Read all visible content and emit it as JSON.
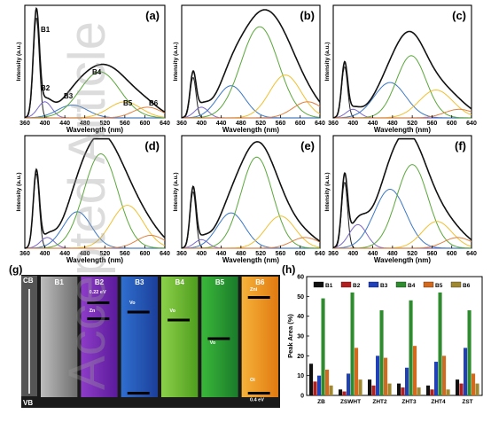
{
  "figure": {
    "watermark": "Accepted Article"
  },
  "pl_axes": {
    "xlabel": "Wavelength (nm)",
    "ylabel": "Intensity (a.u.)",
    "x_min": 360,
    "x_max": 640,
    "xticks": [
      360,
      400,
      440,
      480,
      520,
      560,
      600,
      640
    ]
  },
  "pl_panels": [
    {
      "label": "(a)",
      "peak_labels": [
        "B1",
        "B2",
        "B3",
        "B4",
        "B5",
        "B6"
      ],
      "bands": [
        {
          "center": 383,
          "width": 6,
          "height": 0.94
        },
        {
          "center": 400,
          "width": 14,
          "height": 0.15
        },
        {
          "center": 455,
          "width": 30,
          "height": 0.12
        },
        {
          "center": 510,
          "width": 40,
          "height": 0.43
        },
        {
          "center": 560,
          "width": 32,
          "height": 0.15
        },
        {
          "center": 605,
          "width": 28,
          "height": 0.1
        }
      ]
    },
    {
      "label": "(b)",
      "peak_labels": [],
      "bands": [
        {
          "center": 383,
          "width": 6,
          "height": 0.38
        },
        {
          "center": 400,
          "width": 14,
          "height": 0.1
        },
        {
          "center": 460,
          "width": 28,
          "height": 0.3
        },
        {
          "center": 518,
          "width": 38,
          "height": 0.85
        },
        {
          "center": 570,
          "width": 32,
          "height": 0.4
        },
        {
          "center": 615,
          "width": 30,
          "height": 0.15
        }
      ]
    },
    {
      "label": "(c)",
      "peak_labels": [],
      "bands": [
        {
          "center": 383,
          "width": 6,
          "height": 0.48
        },
        {
          "center": 400,
          "width": 14,
          "height": 0.08
        },
        {
          "center": 475,
          "width": 32,
          "height": 0.33
        },
        {
          "center": 518,
          "width": 30,
          "height": 0.58
        },
        {
          "center": 568,
          "width": 34,
          "height": 0.26
        },
        {
          "center": 615,
          "width": 30,
          "height": 0.08
        }
      ]
    },
    {
      "label": "(d)",
      "peak_labels": [],
      "bands": [
        {
          "center": 383,
          "width": 6,
          "height": 0.7
        },
        {
          "center": 405,
          "width": 14,
          "height": 0.1
        },
        {
          "center": 465,
          "width": 28,
          "height": 0.34
        },
        {
          "center": 512,
          "width": 34,
          "height": 0.88
        },
        {
          "center": 565,
          "width": 32,
          "height": 0.4
        },
        {
          "center": 612,
          "width": 28,
          "height": 0.12
        }
      ]
    },
    {
      "label": "(e)",
      "peak_labels": [],
      "bands": [
        {
          "center": 383,
          "width": 6,
          "height": 0.53
        },
        {
          "center": 400,
          "width": 14,
          "height": 0.08
        },
        {
          "center": 460,
          "width": 28,
          "height": 0.33
        },
        {
          "center": 512,
          "width": 32,
          "height": 0.85
        },
        {
          "center": 560,
          "width": 30,
          "height": 0.3
        },
        {
          "center": 610,
          "width": 28,
          "height": 0.1
        }
      ]
    },
    {
      "label": "(f)",
      "peak_labels": [],
      "bands": [
        {
          "center": 383,
          "width": 6,
          "height": 0.62
        },
        {
          "center": 410,
          "width": 18,
          "height": 0.22
        },
        {
          "center": 475,
          "width": 32,
          "height": 0.55
        },
        {
          "center": 520,
          "width": 32,
          "height": 0.78
        },
        {
          "center": 570,
          "width": 30,
          "height": 0.25
        },
        {
          "center": 612,
          "width": 28,
          "height": 0.1
        }
      ]
    }
  ],
  "band_colors": [
    "#222222",
    "#7b68c8",
    "#3a78c6",
    "#5aa83a",
    "#f0c030",
    "#e08040"
  ],
  "envelope_color": "#111111",
  "panel_g": {
    "label": "(g)",
    "cb_label": "CB",
    "vb_label": "VB",
    "columns": [
      {
        "label": "B1",
        "color_top": "#bdbdbd",
        "color_bottom": "#6e6e6e"
      },
      {
        "label": "B2",
        "color_top": "#8e3cc8",
        "color_bottom": "#5a1a9a"
      },
      {
        "label": "B3",
        "color_top": "#2f6fcf",
        "color_bottom": "#1c3f9a"
      },
      {
        "label": "B4",
        "color_top": "#8cd04a",
        "color_bottom": "#4f9e1e"
      },
      {
        "label": "B5",
        "color_top": "#3ab83a",
        "color_bottom": "#1a7a2a"
      },
      {
        "label": "B6",
        "color_top": "#f6b23a",
        "color_bottom": "#e07a10"
      }
    ],
    "level_labels": [
      "0.22 eV",
      "Zn",
      "Vo",
      "Vo",
      "Vo",
      "Zni",
      "Oi",
      "0.4 eV"
    ]
  },
  "chart_data": [
    {
      "type": "bar",
      "label": "(h)",
      "ylabel": "Peak Area (%)",
      "ylim": [
        0,
        60
      ],
      "yticks": [
        0,
        10,
        20,
        30,
        40,
        50,
        60
      ],
      "categories": [
        "ZB",
        "ZSWHT",
        "ZHT2",
        "ZHT3",
        "ZHT4",
        "ZST"
      ],
      "series": [
        {
          "name": "B1",
          "color": "#111111",
          "values": [
            16,
            3,
            8,
            6,
            5,
            8
          ]
        },
        {
          "name": "B2",
          "color": "#b02020",
          "values": [
            7,
            2,
            5,
            4,
            3,
            6
          ]
        },
        {
          "name": "B3",
          "color": "#2040b8",
          "values": [
            10,
            11,
            20,
            14,
            17,
            24
          ]
        },
        {
          "name": "B4",
          "color": "#2e8b2e",
          "values": [
            49,
            52,
            43,
            48,
            52,
            43
          ]
        },
        {
          "name": "B5",
          "color": "#d2691e",
          "values": [
            13,
            24,
            19,
            25,
            20,
            11
          ]
        },
        {
          "name": "B6",
          "color": "#a08830",
          "values": [
            5,
            8,
            6,
            4,
            3,
            6
          ]
        }
      ]
    }
  ]
}
